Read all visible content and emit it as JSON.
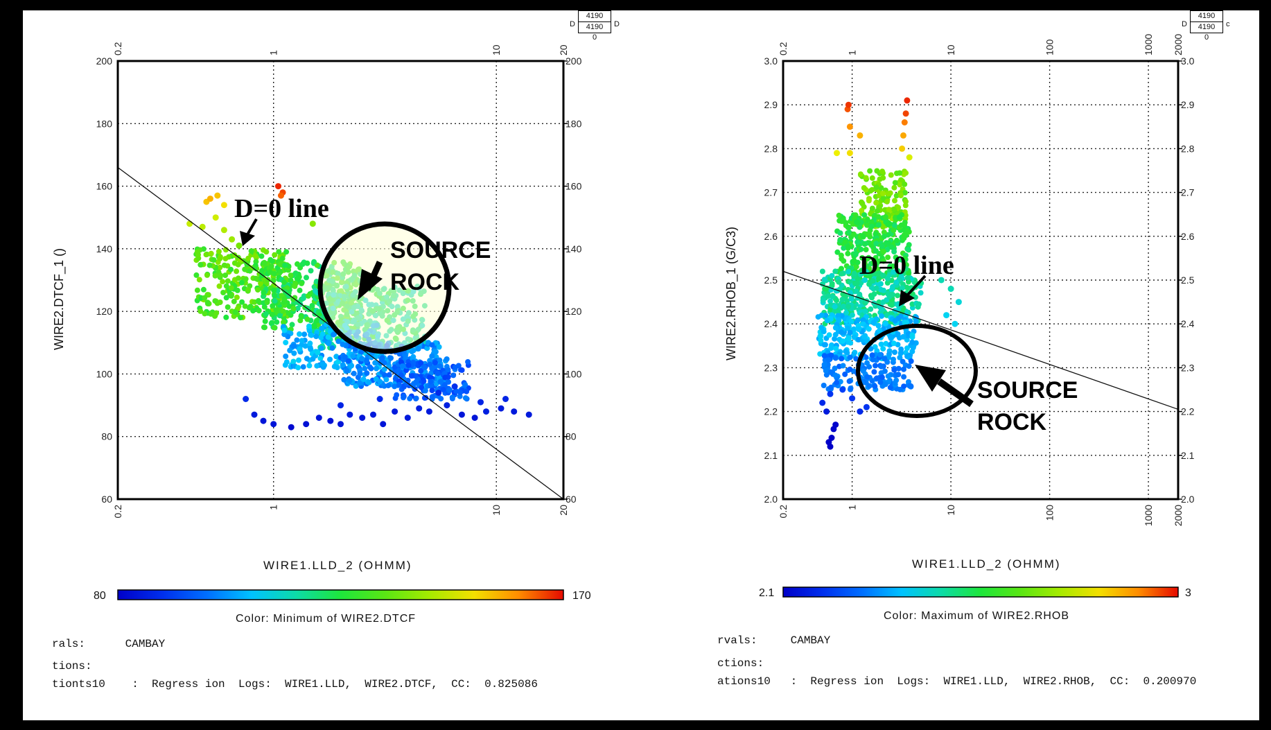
{
  "chart_data": [
    {
      "type": "scatter",
      "xlabel": "WIRE1.LLD_2 (OHMM)",
      "ylabel": "WIRE2.DTCF_1 ()",
      "x_scale": "log",
      "xlim": [
        0.2,
        20
      ],
      "ylim": [
        60,
        200
      ],
      "x_ticks": [
        "0.2",
        "1",
        "10",
        "20"
      ],
      "y_ticks": [
        "60",
        "80",
        "100",
        "120",
        "140",
        "160",
        "180",
        "200"
      ],
      "grid": true,
      "regression_line": {
        "x": [
          0.2,
          20
        ],
        "y": [
          166,
          60
        ]
      },
      "colorbar": {
        "min_label": "80",
        "max_label": "170",
        "title": "Color:  Minimum of WIRE2.DTCF"
      },
      "annotations": [
        {
          "text": "D=0 line",
          "x": 0.95,
          "y": 152
        },
        {
          "text": "SOURCE",
          "x": 4.5,
          "y": 139
        },
        {
          "text": "ROCK",
          "x": 4.2,
          "y": 130
        }
      ],
      "points": [
        [
          0.5,
          155,
          155
        ],
        [
          0.56,
          157,
          155
        ],
        [
          0.6,
          154,
          152
        ],
        [
          0.52,
          156,
          157
        ],
        [
          1.05,
          160,
          168
        ],
        [
          1.1,
          158,
          166
        ],
        [
          1.08,
          157,
          164
        ],
        [
          0.42,
          148,
          146
        ],
        [
          0.48,
          147,
          145
        ],
        [
          0.55,
          150,
          147
        ],
        [
          0.6,
          146,
          144
        ],
        [
          0.65,
          143,
          142
        ],
        [
          1.5,
          148,
          140
        ],
        [
          0.7,
          141,
          138
        ],
        [
          0.75,
          92,
          88
        ],
        [
          0.82,
          87,
          85
        ],
        [
          0.9,
          85,
          84
        ],
        [
          1.0,
          84,
          84
        ],
        [
          1.2,
          83,
          82
        ],
        [
          1.4,
          84,
          83
        ],
        [
          1.6,
          86,
          84
        ],
        [
          1.8,
          85,
          83
        ],
        [
          2.0,
          84,
          84
        ],
        [
          2.2,
          87,
          85
        ],
        [
          2.5,
          86,
          84
        ],
        [
          2.8,
          87,
          85
        ],
        [
          3.1,
          84,
          84
        ],
        [
          3.5,
          88,
          85
        ],
        [
          4.0,
          86,
          85
        ],
        [
          4.5,
          89,
          86
        ],
        [
          5.0,
          88,
          85
        ],
        [
          6.0,
          90,
          86
        ],
        [
          7.0,
          87,
          84
        ],
        [
          8.0,
          86,
          84
        ],
        [
          9.0,
          88,
          86
        ],
        [
          10.5,
          89,
          85
        ],
        [
          12.0,
          88,
          85
        ],
        [
          14.0,
          87,
          85
        ],
        [
          11.0,
          92,
          87
        ],
        [
          5.5,
          94,
          88
        ],
        [
          3.0,
          92,
          88
        ],
        [
          2.0,
          90,
          87
        ],
        [
          6.5,
          96,
          89
        ],
        [
          8.5,
          91,
          87
        ]
      ],
      "clouds": [
        {
          "x_range": [
            0.45,
            1.2
          ],
          "y_range": [
            118,
            140
          ],
          "count": 260,
          "color_range": [
            125,
            140
          ]
        },
        {
          "x_range": [
            0.9,
            2.5
          ],
          "y_range": [
            114,
            136
          ],
          "count": 320,
          "color_range": [
            118,
            132
          ]
        },
        {
          "x_range": [
            1.5,
            4.8
          ],
          "y_range": [
            108,
            128
          ],
          "count": 280,
          "color_range": [
            112,
            126
          ]
        },
        {
          "x_range": [
            1.1,
            3.0
          ],
          "y_range": [
            102,
            116
          ],
          "count": 160,
          "color_range": [
            100,
            110
          ]
        },
        {
          "x_range": [
            2.0,
            6.0
          ],
          "y_range": [
            96,
            110
          ],
          "count": 260,
          "color_range": [
            96,
            106
          ]
        },
        {
          "x_range": [
            3.5,
            7.5
          ],
          "y_range": [
            92,
            104
          ],
          "count": 150,
          "color_range": [
            92,
            100
          ]
        }
      ]
    },
    {
      "type": "scatter",
      "xlabel": "WIRE1.LLD_2 (OHMM)",
      "ylabel": "WIRE2.RHOB_1 (G/C3)",
      "x_scale": "log",
      "xlim": [
        0.2,
        2000
      ],
      "ylim": [
        2.0,
        3.0
      ],
      "x_ticks": [
        "0.2",
        "1",
        "10",
        "100",
        "1000",
        "2000"
      ],
      "y_ticks": [
        "2.0",
        "2.1",
        "2.2",
        "2.3",
        "2.4",
        "2.5",
        "2.6",
        "2.7",
        "2.8",
        "2.9",
        "3.0"
      ],
      "grid": true,
      "regression_line": {
        "x": [
          0.2,
          2000
        ],
        "y": [
          2.52,
          2.205
        ]
      },
      "colorbar": {
        "min_label": "2.1",
        "max_label": "3",
        "title": "Color:  Maximum of WIRE2.RHOB"
      },
      "annotations": [
        {
          "text": "D=0 line",
          "x": 1.5,
          "y": 2.55
        },
        {
          "text": "SOURCE",
          "x": 30,
          "y": 2.29
        },
        {
          "text": "ROCK",
          "x": 30,
          "y": 2.22
        }
      ],
      "points": [
        [
          0.9,
          2.89,
          2.95
        ],
        [
          0.92,
          2.9,
          2.97
        ],
        [
          3.6,
          2.91,
          2.98
        ],
        [
          3.5,
          2.88,
          2.96
        ],
        [
          0.95,
          2.85,
          2.9
        ],
        [
          1.2,
          2.83,
          2.87
        ],
        [
          3.4,
          2.86,
          2.92
        ],
        [
          3.3,
          2.83,
          2.88
        ],
        [
          0.7,
          2.79,
          2.8
        ],
        [
          0.95,
          2.79,
          2.82
        ],
        [
          3.2,
          2.8,
          2.84
        ],
        [
          3.8,
          2.78,
          2.78
        ],
        [
          0.65,
          2.16,
          2.11
        ],
        [
          0.62,
          2.14,
          2.1
        ],
        [
          0.6,
          2.12,
          2.1
        ],
        [
          0.68,
          2.17,
          2.11
        ],
        [
          0.58,
          2.13,
          2.1
        ],
        [
          0.55,
          2.2,
          2.15
        ],
        [
          0.5,
          2.22,
          2.18
        ],
        [
          0.6,
          2.24,
          2.2
        ],
        [
          1.2,
          2.2,
          2.18
        ],
        [
          1.4,
          2.21,
          2.2
        ],
        [
          1.0,
          2.23,
          2.2
        ],
        [
          0.8,
          2.25,
          2.22
        ],
        [
          8.0,
          2.5,
          2.45
        ],
        [
          10.0,
          2.48,
          2.45
        ],
        [
          12.0,
          2.45,
          2.42
        ],
        [
          9.0,
          2.42,
          2.4
        ],
        [
          11.0,
          2.4,
          2.4
        ]
      ],
      "clouds": [
        {
          "x_range": [
            1.2,
            3.5
          ],
          "y_range": [
            2.62,
            2.75
          ],
          "count": 130,
          "color_range": [
            2.62,
            2.72
          ]
        },
        {
          "x_range": [
            0.7,
            3.8
          ],
          "y_range": [
            2.5,
            2.65
          ],
          "count": 260,
          "color_range": [
            2.5,
            2.6
          ]
        },
        {
          "x_range": [
            0.5,
            5.0
          ],
          "y_range": [
            2.4,
            2.52
          ],
          "count": 300,
          "color_range": [
            2.42,
            2.52
          ]
        },
        {
          "x_range": [
            0.45,
            4.5
          ],
          "y_range": [
            2.32,
            2.42
          ],
          "count": 220,
          "color_range": [
            2.33,
            2.4
          ]
        },
        {
          "x_range": [
            0.5,
            4.0
          ],
          "y_range": [
            2.25,
            2.33
          ],
          "count": 130,
          "color_range": [
            2.26,
            2.32
          ]
        }
      ]
    }
  ],
  "badges": [
    {
      "top": "4190",
      "bottom": "4190",
      "sub": "0",
      "left_mark": "D",
      "right_mark": "D"
    },
    {
      "top": "4190",
      "bottom": "4190",
      "sub": "0",
      "left_mark": "D",
      "right_mark": "c"
    }
  ],
  "footer": [
    {
      "intervals": "rals:      CAMBAY",
      "options": "tions:",
      "regression": "tionts10    :  Regress ion  Logs:  WIRE1.LLD,  WIRE2.DTCF,  CC:  0.825086"
    },
    {
      "intervals": "rvals:     CAMBAY",
      "options": "ctions:",
      "regression": "ations10   :  Regress ion  Logs:  WIRE1.LLD,  WIRE2.RHOB,  CC:  0.200970"
    }
  ]
}
